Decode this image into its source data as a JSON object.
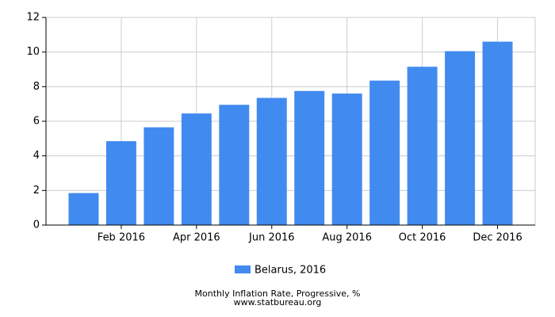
{
  "chart_data": {
    "type": "bar",
    "title": "Monthly Inflation Rate, Progressive, %",
    "subtitle": "www.statbureau.org",
    "categories": [
      null,
      "Feb 2016",
      null,
      "Apr 2016",
      null,
      "Jun 2016",
      null,
      "Aug 2016",
      null,
      "Oct 2016",
      null,
      "Dec 2016"
    ],
    "series": [
      {
        "name": "Belarus, 2016",
        "color": "#418bf0",
        "values": [
          1.85,
          4.85,
          5.65,
          6.45,
          6.95,
          7.35,
          7.75,
          7.6,
          8.35,
          9.15,
          10.05,
          10.6
        ]
      }
    ],
    "ylim": [
      0,
      12
    ],
    "yticks": [
      0,
      2,
      4,
      6,
      8,
      10,
      12
    ],
    "grid": true
  }
}
